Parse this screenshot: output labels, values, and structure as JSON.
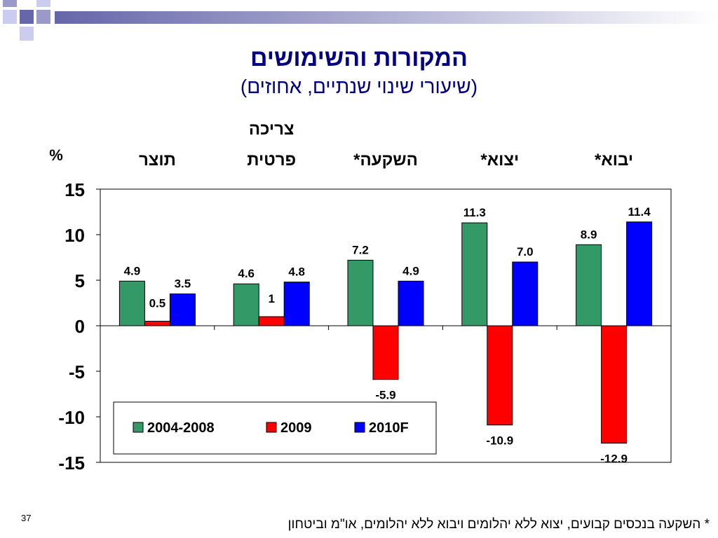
{
  "title": "המקורות והשימושים",
  "subtitle": "(שיעורי שינוי שנתיים, אחוזים)",
  "footnote": "*  השקעה בנכסים קבועים, יצוא ללא יהלומים ויבוא ללא יהלומים, או\"מ וביטחון",
  "page_number": "37",
  "chart_data": {
    "type": "bar",
    "unit_label": "%",
    "categories": [
      [
        "תוצר"
      ],
      [
        "צריכה",
        "פרטית"
      ],
      [
        "השקעה*"
      ],
      [
        "יצוא*"
      ],
      [
        "יבוא*"
      ]
    ],
    "series": [
      {
        "name": "2004-2008",
        "color": "#339966",
        "values": [
          4.9,
          4.6,
          7.2,
          11.3,
          8.9
        ],
        "labels": [
          "4.9",
          "4.6",
          "7.2",
          "11.3",
          "8.9"
        ]
      },
      {
        "name": "2009",
        "color": "#ff0000",
        "values": [
          0.5,
          1,
          -5.9,
          -10.9,
          -12.9
        ],
        "labels": [
          "0.5",
          "1",
          "-5.9",
          "-10.9",
          "-12.9"
        ]
      },
      {
        "name": "2010F",
        "color": "#0000ff",
        "values": [
          3.5,
          4.8,
          4.9,
          7.0,
          11.4
        ],
        "labels": [
          "3.5",
          "4.8",
          "4.9",
          "7.0",
          "11.4"
        ]
      }
    ],
    "ylim": [
      -15,
      15
    ],
    "yticks": [
      15,
      10,
      5,
      0,
      -5,
      -10,
      -15
    ],
    "ytick_labels": [
      "15",
      "10",
      "5",
      "0",
      "-5",
      "-10",
      "-15"
    ],
    "grid": false,
    "legend_position": "bottom-left inside"
  }
}
